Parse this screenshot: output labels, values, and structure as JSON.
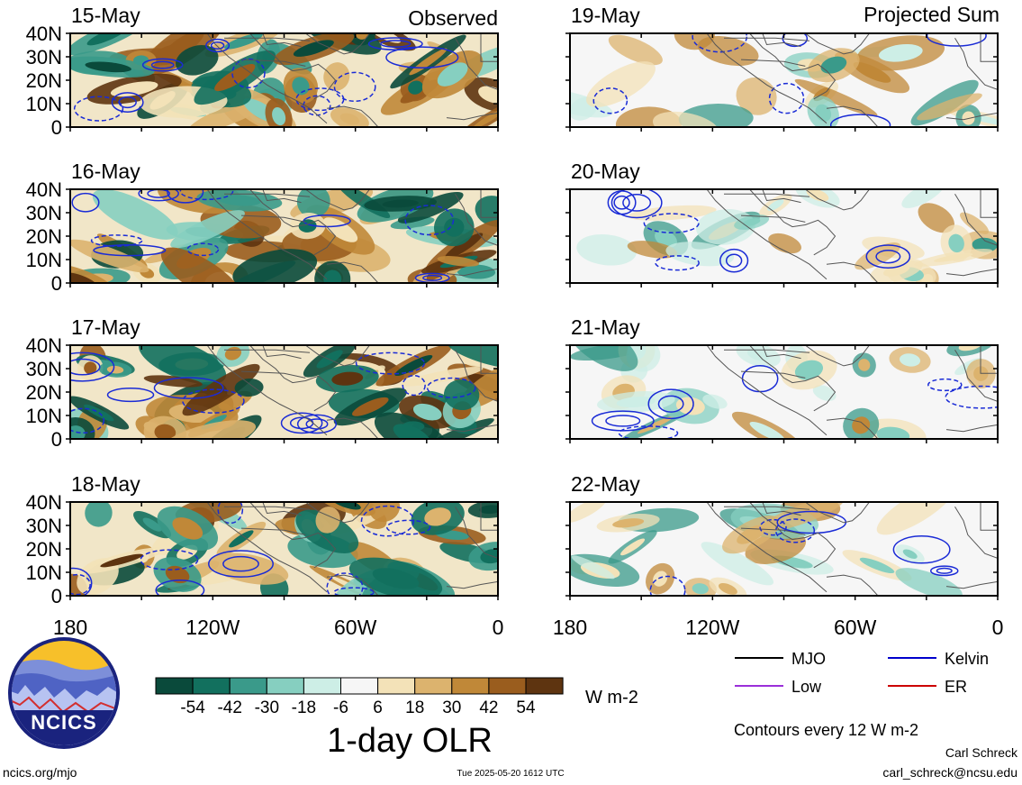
{
  "chart_data": {
    "type": "heatmap",
    "title": "1-day OLR",
    "left_column_label": "Observed",
    "right_column_label": "Projected Sum",
    "panels": [
      {
        "date": "15-May",
        "column": "Observed",
        "scheme": "obs"
      },
      {
        "date": "16-May",
        "column": "Observed",
        "scheme": "obs"
      },
      {
        "date": "17-May",
        "column": "Observed",
        "scheme": "obs"
      },
      {
        "date": "18-May",
        "column": "Observed",
        "scheme": "obs"
      },
      {
        "date": "19-May",
        "column": "Projected Sum",
        "scheme": "proj"
      },
      {
        "date": "20-May",
        "column": "Projected Sum",
        "scheme": "proj"
      },
      {
        "date": "21-May",
        "column": "Projected Sum",
        "scheme": "proj"
      },
      {
        "date": "22-May",
        "column": "Projected Sum",
        "scheme": "proj"
      }
    ],
    "y_ticks": [
      "40N",
      "30N",
      "20N",
      "10N",
      "0"
    ],
    "y_values": [
      40,
      30,
      20,
      10,
      0
    ],
    "ylim": [
      0,
      40
    ],
    "x_ticks": [
      "180",
      "120W",
      "60W",
      "0"
    ],
    "x_values": [
      180,
      120,
      60,
      0
    ],
    "xlim": [
      180,
      0
    ],
    "colorbar": {
      "labels": [
        "-54",
        "-42",
        "-30",
        "-18",
        "-6",
        "6",
        "18",
        "30",
        "42",
        "54"
      ],
      "colors": [
        "#0a4a3b",
        "#12705e",
        "#3a9a8a",
        "#86cfc0",
        "#cdeee6",
        "#f6f6f6",
        "#f3e2b8",
        "#dcb36e",
        "#c08838",
        "#9a5d1e",
        "#5e3410"
      ],
      "units": "W m-2"
    },
    "legend": [
      {
        "label": "MJO",
        "color": "#000000"
      },
      {
        "label": "Kelvin",
        "color": "#0000cc"
      },
      {
        "label": "Low",
        "color": "#9b30d9"
      },
      {
        "label": "ER",
        "color": "#cc0000"
      }
    ],
    "contour_note": "Contours every 12 W m-2"
  },
  "footer": {
    "logo_text": "NCICS",
    "site": "ncics.org/mjo",
    "timestamp": "Tue 2025-05-20 1612 UTC",
    "author": "Carl Schreck",
    "email": "carl_schreck@ncsu.edu"
  }
}
